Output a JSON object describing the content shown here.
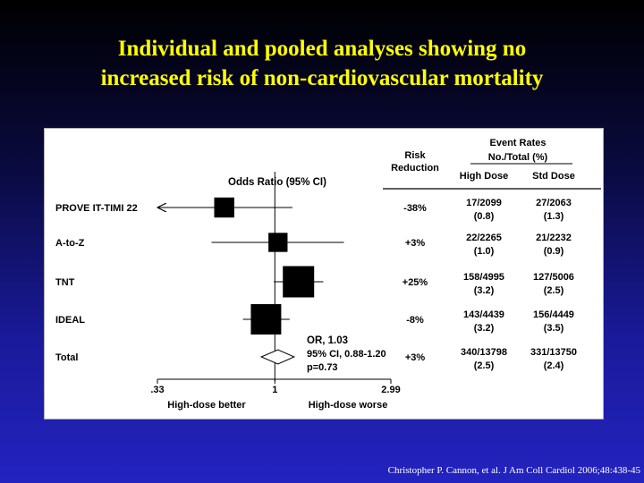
{
  "title_line1": "Individual and pooled analyses showing no",
  "title_line2": "increased risk of non-cardiovascular mortality",
  "citation": "Christopher P. Cannon, et al. J Am Coll Cardiol 2006;48:438-45",
  "headers": {
    "odds_ratio": "Odds Ratio (95% CI)",
    "risk_line1": "Risk",
    "risk_line2": "Reduction",
    "event_rates": "Event Rates",
    "no_total": "No./Total (%)",
    "high_dose": "High Dose",
    "std_dose": "Std Dose"
  },
  "axis": {
    "ticks": [
      ".33",
      "1",
      "2.99"
    ],
    "left_label": "High-dose better",
    "right_label": "High-dose worse"
  },
  "total_annotation": [
    "OR, 1.03",
    "95% CI, 0.88-1.20",
    "p=0.73"
  ],
  "colors": {
    "title": "#ffff00",
    "panel": "#ffffff",
    "marker": "#000000"
  },
  "chart_data": {
    "type": "forest",
    "x_scale": "log",
    "xlim": [
      0.33,
      2.99
    ],
    "reference_line": 1,
    "rows": [
      {
        "study": "PROVE IT-TIMI 22",
        "or": 0.62,
        "ci": [
          0.33,
          1.18
        ],
        "ci_lower_arrow": true,
        "weight": 0.4,
        "risk_reduction": "-38%",
        "high_dose": [
          "17/2099",
          "(0.8)"
        ],
        "std_dose": [
          "27/2063",
          "(1.3)"
        ]
      },
      {
        "study": "A-to-Z",
        "or": 1.03,
        "ci": [
          0.55,
          1.92
        ],
        "weight": 0.35,
        "risk_reduction": "+3%",
        "high_dose": [
          "22/2265",
          "(1.0)"
        ],
        "std_dose": [
          "21/2232",
          "(0.9)"
        ]
      },
      {
        "study": "TNT",
        "or": 1.25,
        "ci": [
          0.99,
          1.58
        ],
        "weight": 1.0,
        "risk_reduction": "+25%",
        "high_dose": [
          "158/4995",
          "(3.2)"
        ],
        "std_dose": [
          "127/5006",
          "(2.5)"
        ]
      },
      {
        "study": "IDEAL",
        "or": 0.92,
        "ci": [
          0.74,
          1.15
        ],
        "weight": 0.95,
        "risk_reduction": "-8%",
        "high_dose": [
          "143/4439",
          "(3.2)"
        ],
        "std_dose": [
          "156/4449",
          "(3.5)"
        ]
      },
      {
        "study": "Total",
        "or": 1.03,
        "ci": [
          0.88,
          1.2
        ],
        "pooled": true,
        "risk_reduction": "+3%",
        "high_dose": [
          "340/13798",
          "(2.5)"
        ],
        "std_dose": [
          "331/13750",
          "(2.4)"
        ]
      }
    ]
  }
}
